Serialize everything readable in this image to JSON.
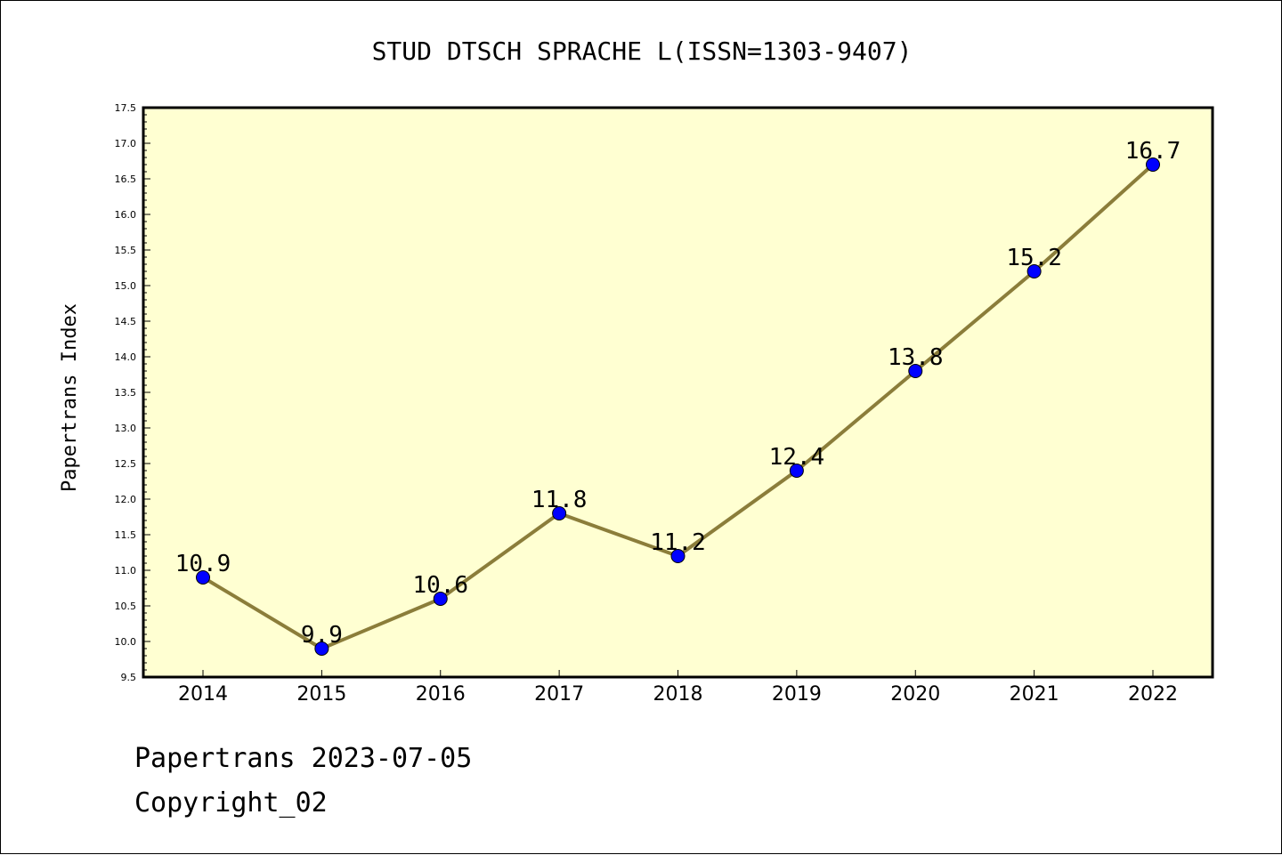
{
  "chart_data": {
    "type": "line",
    "title": "STUD DTSCH SPRACHE L(ISSN=1303-9407)",
    "xlabel": "",
    "ylabel": "Papertrans Index",
    "categories": [
      "2014",
      "2015",
      "2016",
      "2017",
      "2018",
      "2019",
      "2020",
      "2021",
      "2022"
    ],
    "values": [
      10.9,
      9.9,
      10.6,
      11.8,
      11.2,
      12.4,
      13.8,
      15.2,
      16.7
    ],
    "value_labels": [
      "10.9",
      "9.9",
      "10.6",
      "11.8",
      "11.2",
      "12.4",
      "13.8",
      "15.2",
      "16.7"
    ],
    "ylim": [
      9.5,
      17.5
    ],
    "yticks": [
      "9.5",
      "10.0",
      "10.5",
      "11.0",
      "11.5",
      "12.0",
      "12.5",
      "13.0",
      "13.5",
      "14.0",
      "14.5",
      "15.0",
      "15.5",
      "16.0",
      "16.5",
      "17.0",
      "17.5"
    ],
    "grid": false,
    "colors": {
      "plot_background": "#ffffd2",
      "line": "#8b7d3a",
      "marker": "#0000ff"
    }
  },
  "footer": {
    "line1": "Papertrans 2023-07-05",
    "line2": "Copyright_02"
  }
}
